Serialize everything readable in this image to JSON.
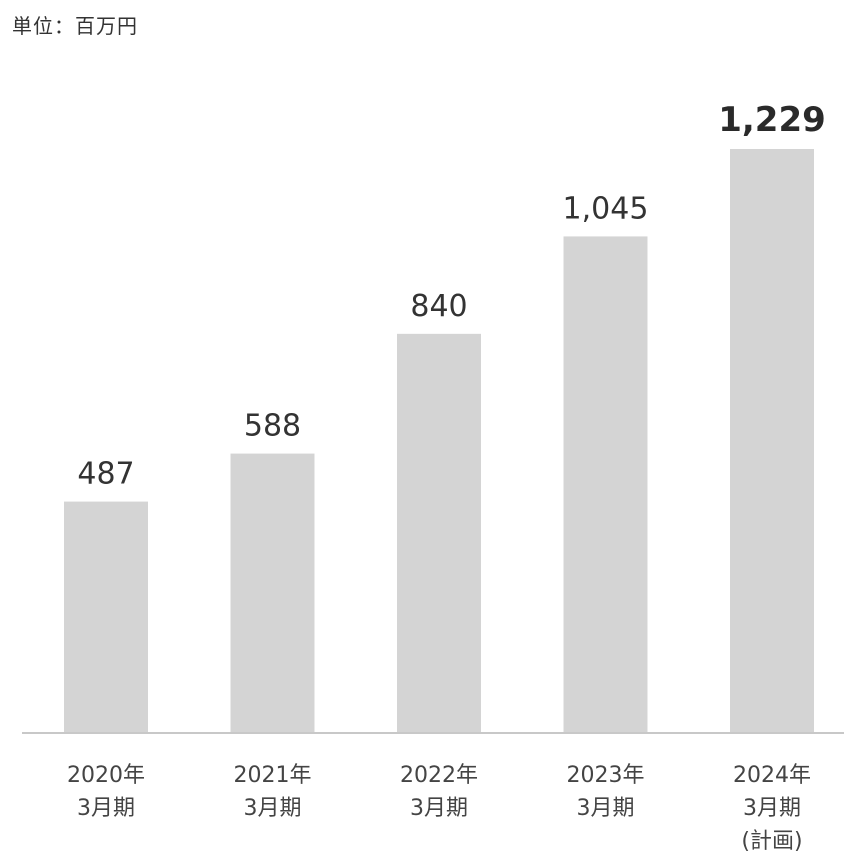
{
  "unit_label": "単位：百万円",
  "chart_data": {
    "type": "bar",
    "categories": [
      [
        "2020年",
        "3月期"
      ],
      [
        "2021年",
        "3月期"
      ],
      [
        "2022年",
        "3月期"
      ],
      [
        "2023年",
        "3月期"
      ],
      [
        "2024年",
        "3月期",
        "(計画)"
      ]
    ],
    "values": [
      487,
      588,
      840,
      1045,
      1229
    ],
    "value_labels": [
      "487",
      "588",
      "840",
      "1,045",
      "1,229"
    ],
    "emphasized_index": 4,
    "ylim": [
      0,
      1229
    ],
    "grid": false,
    "legend": "none",
    "bar_color": "#d4d4d4"
  }
}
